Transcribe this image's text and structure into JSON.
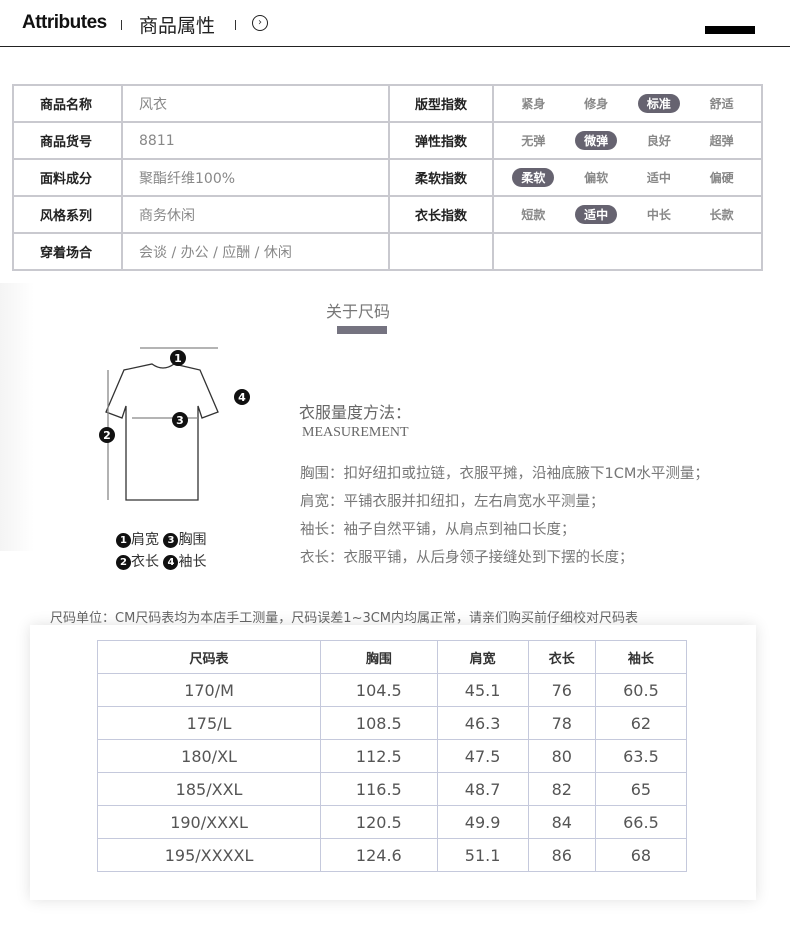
{
  "header": {
    "title_en": "Attributes",
    "title_cn": "商品属性",
    "arrow_icon": "circle-chevron-right-icon"
  },
  "attributes": {
    "rows": [
      {
        "label": "商品名称",
        "value": "风衣",
        "index_label": "版型指数",
        "options": [
          "紧身",
          "修身",
          "标准",
          "舒适"
        ],
        "selected": 2
      },
      {
        "label": "商品货号",
        "value": "8811",
        "index_label": "弹性指数",
        "options": [
          "无弹",
          "微弹",
          "良好",
          "超弹"
        ],
        "selected": 1
      },
      {
        "label": "面料成分",
        "value": "聚酯纤维100%",
        "index_label": "柔软指数",
        "options": [
          "柔软",
          "偏软",
          "适中",
          "偏硬"
        ],
        "selected": 0
      },
      {
        "label": "风格系列",
        "value": "商务休闲",
        "index_label": "衣长指数",
        "options": [
          "短款",
          "适中",
          "中长",
          "长款"
        ],
        "selected": 1
      },
      {
        "label": "穿着场合",
        "value": "会谈 / 办公 / 应酬 / 休闲"
      }
    ],
    "selected_color": "#666370"
  },
  "size_section": {
    "title": "关于尺码",
    "legend": [
      {
        "n": "1",
        "label": "肩宽"
      },
      {
        "n": "3",
        "label": "胸围"
      },
      {
        "n": "2",
        "label": "衣长"
      },
      {
        "n": "4",
        "label": "袖长"
      }
    ],
    "method_title": "衣服量度方法：",
    "method_en": "MEASUREMENT",
    "methods": [
      "胸围：扣好纽扣或拉链，衣服平摊，沿袖底腋下1CM水平测量；",
      "肩宽：平铺衣服并扣纽扣，左右肩宽水平测量；",
      "袖长：袖子自然平铺，从肩点到袖口长度；",
      "衣长：衣服平铺，从后身领子接缝处到下摆的长度；"
    ]
  },
  "size_table": {
    "note": "尺码单位：CM尺码表均为本店手工测量，尺码误差1~3CM内均属正常，请亲们购买前仔细校对尺码表",
    "headers": [
      "尺码表",
      "胸围",
      "肩宽",
      "衣长",
      "袖长"
    ],
    "rows": [
      [
        "170/M",
        "104.5",
        "45.1",
        "76",
        "60.5"
      ],
      [
        "175/L",
        "108.5",
        "46.3",
        "78",
        "62"
      ],
      [
        "180/XL",
        "112.5",
        "47.5",
        "80",
        "63.5"
      ],
      [
        "185/XXL",
        "116.5",
        "48.7",
        "82",
        "65"
      ],
      [
        "190/XXXL",
        "120.5",
        "49.9",
        "84",
        "66.5"
      ],
      [
        "195/XXXXL",
        "124.6",
        "51.1",
        "86",
        "68"
      ]
    ]
  }
}
